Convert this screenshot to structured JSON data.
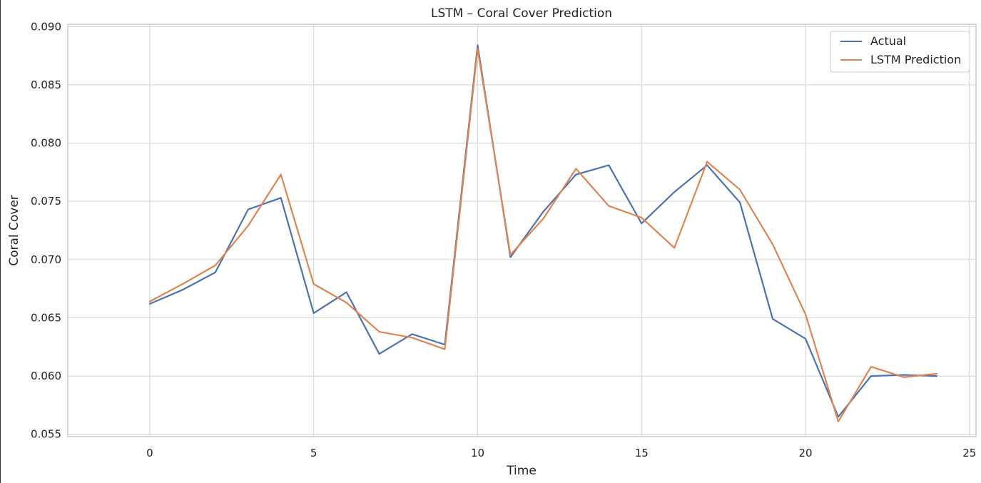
{
  "chart_data": {
    "type": "line",
    "title": "LSTM – Coral Cover Prediction",
    "xlabel": "Time",
    "ylabel": "Coral Cover",
    "xlim": [
      -2.5,
      25.2
    ],
    "ylim": [
      0.0548,
      0.0902
    ],
    "xticks": [
      0,
      5,
      10,
      15,
      20,
      25
    ],
    "xtick_labels": [
      "0",
      "5",
      "10",
      "15",
      "20",
      "25"
    ],
    "yticks": [
      0.055,
      0.06,
      0.065,
      0.07,
      0.075,
      0.08,
      0.085,
      0.09
    ],
    "ytick_labels": [
      "0.055",
      "0.060",
      "0.065",
      "0.070",
      "0.075",
      "0.080",
      "0.085",
      "0.090"
    ],
    "grid": true,
    "legend_position": "top-right",
    "x": [
      0,
      1,
      2,
      3,
      4,
      5,
      6,
      7,
      8,
      9,
      10,
      11,
      12,
      13,
      14,
      15,
      16,
      17,
      18,
      19,
      20,
      21,
      22,
      23,
      24
    ],
    "series": [
      {
        "name": "Actual",
        "color": "#4c72b0",
        "values": [
          0.0662,
          0.0674,
          0.0689,
          0.0743,
          0.0753,
          0.0654,
          0.0672,
          0.0619,
          0.0636,
          0.0627,
          0.0884,
          0.0702,
          0.0741,
          0.0773,
          0.0781,
          0.0731,
          0.0758,
          0.0781,
          0.0749,
          0.0649,
          0.0632,
          0.0565,
          0.06,
          0.0601,
          0.06
        ]
      },
      {
        "name": "LSTM Prediction",
        "color": "#dd8452",
        "values": [
          0.0664,
          0.0679,
          0.0695,
          0.0729,
          0.0773,
          0.0679,
          0.0663,
          0.0638,
          0.0633,
          0.0623,
          0.0881,
          0.0704,
          0.0735,
          0.0778,
          0.0746,
          0.0736,
          0.071,
          0.0784,
          0.076,
          0.0713,
          0.0653,
          0.0561,
          0.0608,
          0.0599,
          0.0602
        ]
      }
    ]
  }
}
